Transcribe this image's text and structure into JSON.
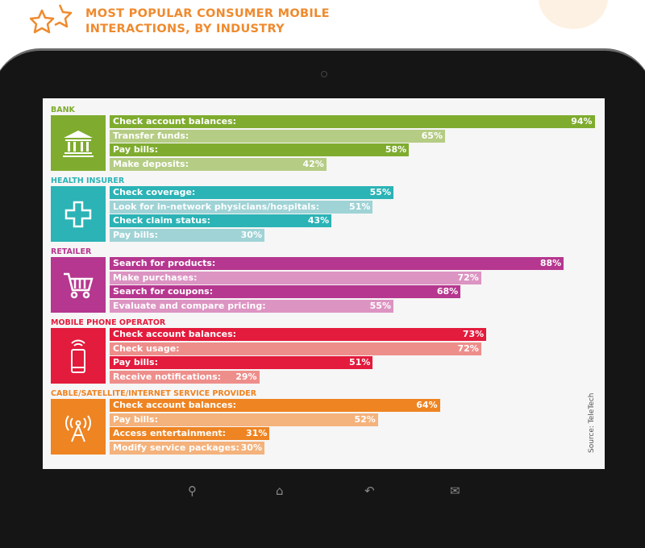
{
  "title_line1": "MOST POPULAR CONSUMER MOBILE",
  "title_line2": "INTERACTIONS, BY INDUSTRY",
  "source": "Source: TeleTech",
  "chart_data": {
    "type": "bar",
    "orientation": "horizontal",
    "title": "MOST POPULAR CONSUMER MOBILE INTERACTIONS, BY INDUSTRY",
    "xlim": [
      0,
      100
    ],
    "groups": [
      {
        "name": "BANK",
        "icon": "bank-icon",
        "dark": "#7fac2f",
        "light": "#b5cc84",
        "items": [
          [
            "Check account balances:",
            94
          ],
          [
            "Transfer funds:",
            65
          ],
          [
            "Pay bills:",
            58
          ],
          [
            "Make deposits:",
            42
          ]
        ]
      },
      {
        "name": "HEALTH INSURER",
        "icon": "medical-cross-icon",
        "dark": "#2bb3b6",
        "light": "#9fd3d6",
        "items": [
          [
            "Check coverage:",
            55
          ],
          [
            "Look for in-network physicians/hospitals:",
            51
          ],
          [
            "Check claim status:",
            43
          ],
          [
            "Pay bills:",
            30
          ]
        ]
      },
      {
        "name": "RETAILER",
        "icon": "shopping-cart-icon",
        "dark": "#b6378f",
        "light": "#dc94c2",
        "items": [
          [
            "Search for products:",
            88
          ],
          [
            "Make purchases:",
            72
          ],
          [
            "Search for coupons:",
            68
          ],
          [
            "Evaluate and compare pricing:",
            55
          ]
        ]
      },
      {
        "name": "MOBILE PHONE OPERATOR",
        "icon": "mobile-phone-icon",
        "dark": "#e31b3c",
        "light": "#ee8e8b",
        "items": [
          [
            "Check account balances:",
            73
          ],
          [
            "Check usage:",
            72
          ],
          [
            "Pay bills:",
            51
          ],
          [
            "Receive notifications:",
            29
          ]
        ]
      },
      {
        "name": "CABLE/SATELLITE/INTERNET SERVICE PROVIDER",
        "icon": "antenna-tower-icon",
        "dark": "#ee8422",
        "light": "#f4b27c",
        "items": [
          [
            "Check account balances:",
            64
          ],
          [
            "Pay bills:",
            52
          ],
          [
            "Access entertainment:",
            31
          ],
          [
            "Modify service packages:",
            30
          ]
        ]
      }
    ]
  }
}
